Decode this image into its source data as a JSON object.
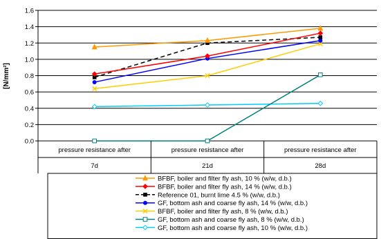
{
  "chart_data": {
    "type": "line",
    "title": "",
    "ylabel": "[N/mm²]",
    "ylim": [
      0,
      1.6
    ],
    "yticks": [
      0.0,
      0.2,
      0.4,
      0.6,
      0.8,
      1.0,
      1.2,
      1.4,
      1.6
    ],
    "ytick_labels": [
      "0.0",
      "0.2",
      "0.4",
      "0.6",
      "0.8",
      "1.0",
      "1.2",
      "1.4",
      "1.6"
    ],
    "grid": "horizontal",
    "legend_position": "bottom",
    "categories": [
      {
        "line1": "pressure resistance after",
        "line2": "7d"
      },
      {
        "line1": "pressure resistance after",
        "line2": "21d"
      },
      {
        "line1": "pressure resistance after",
        "line2": "28d"
      }
    ],
    "series": [
      {
        "name": "BFBF, boiler and filter fly ash, 10 % (w/w, d.b.)",
        "values": [
          1.15,
          1.23,
          1.38
        ],
        "color": "#FF9900",
        "marker": "triangle",
        "dash": false
      },
      {
        "name": "BFBF, boiler and filter fly ash, 14 % (w/w, d.b.)",
        "values": [
          0.82,
          1.04,
          1.32
        ],
        "color": "#FF0000",
        "marker": "diamond",
        "dash": false
      },
      {
        "name": "Reference 01, burnt lime 4.5 % (w/w, d.b.)",
        "values": [
          0.78,
          1.2,
          1.27
        ],
        "color": "#000000",
        "marker": "square",
        "dash": true
      },
      {
        "name": "GF, bottom ash and coarse fly ash, 14 % (w/w, d.b.)",
        "values": [
          0.72,
          1.01,
          1.23
        ],
        "color": "#0000FF",
        "marker": "circle",
        "dash": false
      },
      {
        "name": "BFBF, boiler and filter fly ash, 8 % (w/w, d.b.)",
        "values": [
          0.64,
          0.8,
          1.19
        ],
        "color": "#FFCC00",
        "marker": "x",
        "dash": false
      },
      {
        "name": "GF, bottom ash and coarse fly ash, 8 % (w/w, d.b.)",
        "values": [
          0.0,
          0.0,
          0.81
        ],
        "color": "#008080",
        "marker": "square-open",
        "dash": false
      },
      {
        "name": "GF, bottom ash and coarse fly ash, 10 % (w/w, d.b.)",
        "values": [
          0.42,
          0.44,
          0.46
        ],
        "color": "#00CCFF",
        "marker": "diamond-open",
        "dash": false
      }
    ]
  }
}
